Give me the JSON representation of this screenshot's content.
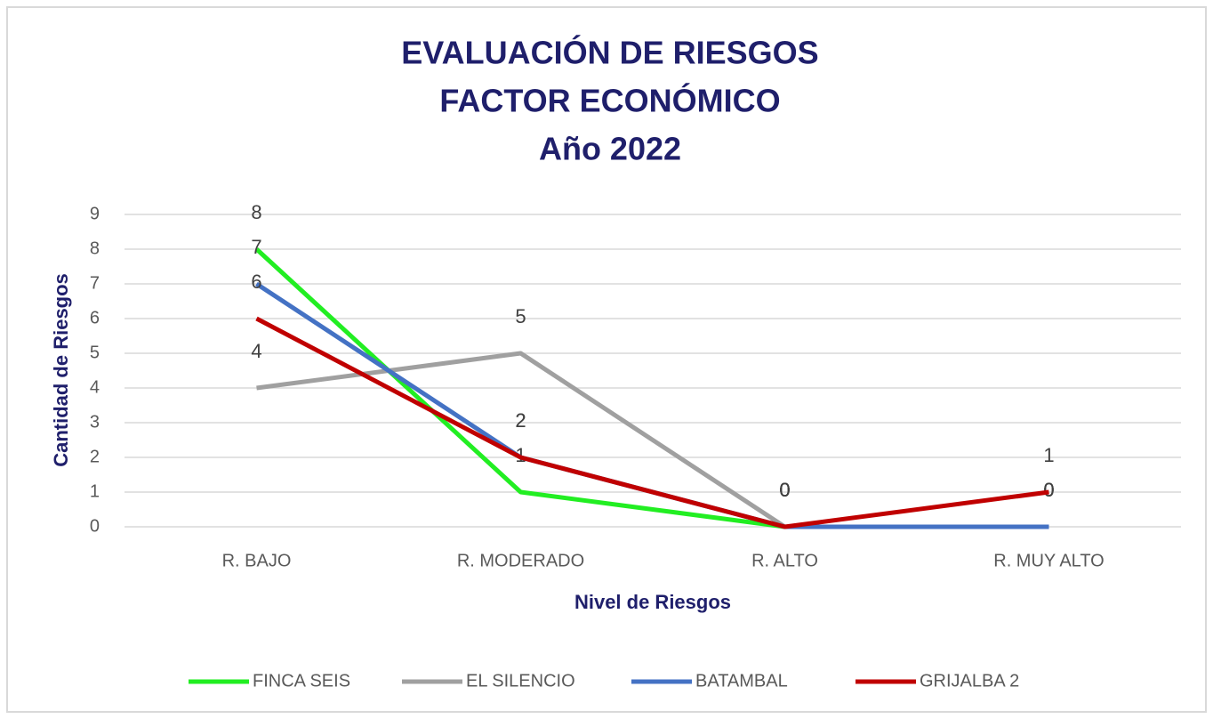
{
  "chart_data": {
    "type": "line",
    "title": [
      "EVALUACIÓN DE RIESGOS",
      "FACTOR ECONÓMICO",
      "Año 2022"
    ],
    "x_label": "Nivel de Riesgos",
    "y_label": "Cantidad  de Riesgos",
    "categories": [
      "R. BAJO",
      "R. MODERADO",
      "R. ALTO",
      "R. MUY ALTO"
    ],
    "series": [
      {
        "name": "FINCA SEIS",
        "color": "#22ee22",
        "values": [
          8,
          1,
          0,
          0
        ]
      },
      {
        "name": "EL SILENCIO",
        "color": "#a0a0a0",
        "values": [
          4,
          5,
          0,
          0
        ]
      },
      {
        "name": "BATAMBAL",
        "color": "#4472c4",
        "values": [
          7,
          2,
          0,
          0
        ]
      },
      {
        "name": "GRIJALBA 2",
        "color": "#c00000",
        "values": [
          6,
          2,
          0,
          1
        ]
      }
    ],
    "ylim": [
      0,
      9
    ],
    "yticks": [
      0,
      1,
      2,
      3,
      4,
      5,
      6,
      7,
      8,
      9
    ],
    "grid": true,
    "legend": "bottom"
  }
}
